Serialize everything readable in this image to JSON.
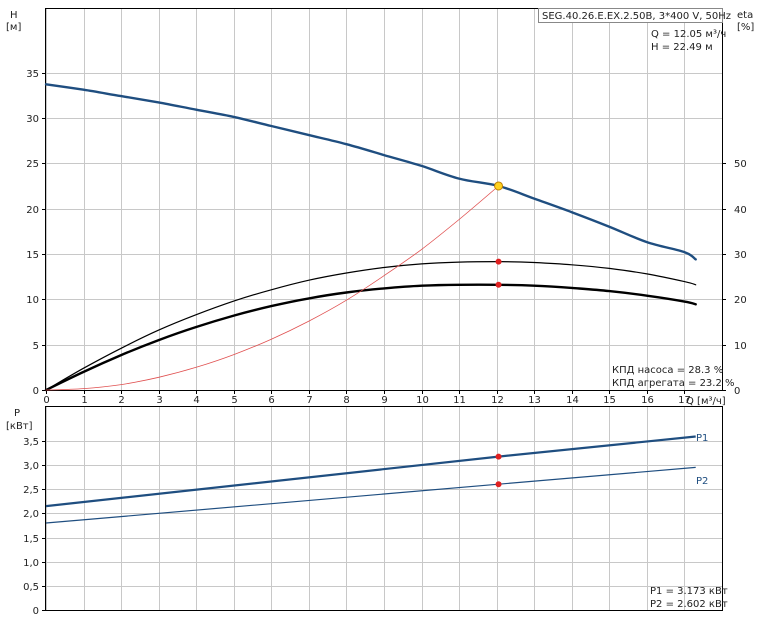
{
  "chart_data": [
    {
      "type": "line",
      "title": "SEG.40.26.E.EX.2.50B, 3*400 V, 50Hz",
      "ylabel": "H",
      "yunit": "[м]",
      "y2label": "eta",
      "y2unit": "[%]",
      "xlabel": "Q [м³/ч]",
      "xlim": [
        0,
        18
      ],
      "ylim": [
        0,
        42
      ],
      "y2lim": [
        0,
        84
      ],
      "xticks": [
        "0",
        "1",
        "2",
        "3",
        "4",
        "5",
        "6",
        "7",
        "8",
        "9",
        "10",
        "11",
        "12",
        "13",
        "14",
        "15",
        "16",
        "17"
      ],
      "yticks": [
        "0",
        "5",
        "10",
        "15",
        "20",
        "25",
        "30",
        "35"
      ],
      "y2ticks": [
        "0",
        "10",
        "20",
        "30",
        "40",
        "50"
      ],
      "grid": true,
      "series": [
        {
          "name": "",
          "axis": "left",
          "color": "#1f4e80",
          "x": [
            0,
            1,
            2,
            3,
            4,
            5,
            6,
            7,
            8,
            9,
            10,
            11,
            12.05,
            13,
            14,
            15,
            16,
            17,
            17.3
          ],
          "y": [
            33.7,
            33.1,
            32.4,
            31.7,
            30.9,
            30.1,
            29.1,
            28.1,
            27.1,
            25.9,
            24.7,
            23.3,
            22.49,
            21.1,
            19.6,
            18.0,
            16.3,
            15.2,
            14.4
          ]
        },
        {
          "name": "",
          "axis": "right",
          "color": "#000000",
          "x": [
            0,
            1,
            2,
            3,
            4,
            5,
            6,
            7,
            8,
            9,
            10,
            11,
            12.05,
            13,
            14,
            15,
            16,
            17,
            17.3
          ],
          "y": [
            0,
            4.8,
            9.2,
            13.2,
            16.6,
            19.6,
            22.1,
            24.2,
            25.8,
            27.0,
            27.8,
            28.2,
            28.3,
            28.1,
            27.6,
            26.8,
            25.6,
            23.9,
            23.2
          ]
        },
        {
          "name": "",
          "axis": "right",
          "color": "#000000",
          "x": [
            0,
            1,
            2,
            3,
            4,
            5,
            6,
            7,
            8,
            9,
            10,
            11,
            12.05,
            13,
            14,
            15,
            16,
            17,
            17.3
          ],
          "y": [
            0,
            4.0,
            7.7,
            11.0,
            13.9,
            16.4,
            18.5,
            20.2,
            21.5,
            22.4,
            23.0,
            23.2,
            23.2,
            23.0,
            22.5,
            21.8,
            20.8,
            19.5,
            18.9
          ]
        },
        {
          "name": "",
          "axis": "left",
          "color": "#e05050",
          "x": [
            0,
            1,
            2,
            3,
            4,
            5,
            6,
            7,
            8,
            9,
            10,
            11,
            12.05
          ],
          "y": [
            0,
            0.15,
            0.6,
            1.4,
            2.5,
            3.9,
            5.6,
            7.6,
            9.9,
            12.6,
            15.5,
            18.8,
            22.49
          ]
        }
      ],
      "points": [
        {
          "name": "Q=12.05, H=22.49",
          "x": 12.05,
          "y": 22.49,
          "axis": "left",
          "color": "#ffd21f"
        },
        {
          "name": "eta pump",
          "x": 12.05,
          "y": 28.3,
          "axis": "right",
          "color": "#e02020"
        },
        {
          "name": "eta unit",
          "x": 12.05,
          "y": 23.2,
          "axis": "right",
          "color": "#e02020"
        }
      ],
      "annotations": {
        "q_value": "Q = 12.05 м³/ч",
        "h_value": "H = 22.49 м",
        "eta_pump": "КПД насоса = 28.3 %",
        "eta_unit": "КПД агрегата = 23.2 %"
      }
    },
    {
      "type": "line",
      "ylabel": "P",
      "yunit": "[кВт]",
      "xlim": [
        0,
        18
      ],
      "ylim": [
        0,
        4.2
      ],
      "yticks": [
        "0",
        "0,5",
        "1,0",
        "1,5",
        "2,0",
        "2,5",
        "3,0",
        "3,5"
      ],
      "grid": true,
      "series": [
        {
          "name": "P1",
          "color": "#1f4e80",
          "x": [
            0,
            12.05,
            17.3
          ],
          "y": [
            2.15,
            3.173,
            3.59
          ]
        },
        {
          "name": "P2",
          "color": "#1f4e80",
          "x": [
            0,
            12.05,
            17.3
          ],
          "y": [
            1.8,
            2.602,
            2.95
          ]
        }
      ],
      "points": [
        {
          "name": "P1 point",
          "x": 12.05,
          "y": 3.173,
          "color": "#e02020"
        },
        {
          "name": "P2 point",
          "x": 12.05,
          "y": 2.602,
          "color": "#e02020"
        }
      ],
      "annotations": {
        "p1_value": "P1 = 3.173 кВт",
        "p2_value": "P2 = 2.602 кВт"
      }
    }
  ]
}
